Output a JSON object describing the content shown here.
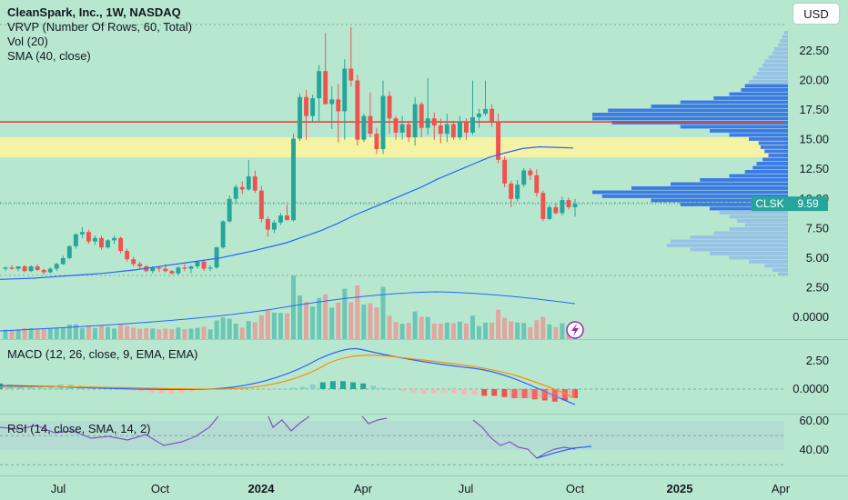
{
  "header": {
    "title": "CleanSpark, Inc., 1W, NASDAQ",
    "indicators": [
      "VRVP (Number Of Rows, 60, Total)",
      "Vol (20)",
      "SMA (40, close)"
    ],
    "currency_button": "USD"
  },
  "price_pane": {
    "ticks": [
      "22.50",
      "20.00",
      "17.50",
      "15.00",
      "12.50",
      "10.00",
      "7.50",
      "5.00",
      "2.50",
      "0.0000"
    ],
    "symbol": "CLSK",
    "last_price": "9.59"
  },
  "macd_pane": {
    "title": "MACD (12, 26, close, 9, EMA, EMA)",
    "ticks": [
      "2.50",
      "0.0000"
    ]
  },
  "rsi_pane": {
    "title": "RSI (14, close, SMA, 14, 2)",
    "ticks": [
      "60.00",
      "40.00"
    ]
  },
  "time_axis": {
    "labels": [
      {
        "text": "Jul",
        "bold": false
      },
      {
        "text": "Oct",
        "bold": false
      },
      {
        "text": "2024",
        "bold": true
      },
      {
        "text": "Apr",
        "bold": false
      },
      {
        "text": "Jul",
        "bold": false
      },
      {
        "text": "Oct",
        "bold": false
      },
      {
        "text": "2025",
        "bold": true
      },
      {
        "text": "Apr",
        "bold": false
      }
    ]
  },
  "colors": {
    "up": "#26a69a",
    "down": "#ef5350",
    "sma": "#2962ff",
    "resistance": "#e03a3a",
    "zone": "#fff59d"
  },
  "chart_data": {
    "type": "candlestick",
    "symbol": "CLSK",
    "interval": "1W",
    "price_range": [
      0,
      25
    ],
    "resistance_line": 16.5,
    "zone": [
      13.5,
      15.2
    ],
    "last_price": 9.59,
    "candles_ohlc": [
      [
        4.1,
        4.3,
        3.9,
        4.2
      ],
      [
        4.2,
        4.4,
        4.0,
        4.1
      ],
      [
        4.1,
        4.3,
        3.9,
        4.3
      ],
      [
        4.3,
        4.4,
        3.8,
        3.9
      ],
      [
        3.9,
        4.4,
        3.8,
        4.3
      ],
      [
        4.3,
        4.5,
        3.9,
        4.0
      ],
      [
        4.0,
        4.1,
        3.6,
        3.8
      ],
      [
        3.8,
        4.2,
        3.7,
        4.1
      ],
      [
        4.1,
        4.6,
        3.9,
        4.5
      ],
      [
        4.5,
        5.2,
        4.4,
        5.0
      ],
      [
        5.0,
        6.1,
        4.9,
        6.0
      ],
      [
        6.0,
        7.1,
        5.8,
        7.0
      ],
      [
        7.0,
        7.6,
        6.7,
        7.2
      ],
      [
        7.2,
        7.4,
        6.2,
        6.4
      ],
      [
        6.4,
        6.9,
        6.1,
        6.7
      ],
      [
        6.7,
        6.9,
        5.7,
        5.9
      ],
      [
        5.9,
        6.6,
        5.8,
        6.5
      ],
      [
        6.5,
        6.9,
        6.2,
        6.7
      ],
      [
        6.7,
        6.8,
        5.4,
        5.6
      ],
      [
        5.6,
        5.8,
        4.7,
        4.9
      ],
      [
        4.9,
        5.1,
        4.3,
        4.5
      ],
      [
        4.5,
        4.7,
        4.1,
        4.3
      ],
      [
        4.3,
        4.4,
        3.8,
        3.9
      ],
      [
        3.9,
        4.3,
        3.7,
        4.2
      ],
      [
        4.2,
        4.3,
        3.8,
        4.1
      ],
      [
        4.1,
        4.5,
        3.8,
        3.9
      ],
      [
        3.9,
        4.0,
        3.6,
        3.7
      ],
      [
        3.7,
        4.3,
        3.6,
        4.2
      ],
      [
        4.2,
        4.5,
        3.9,
        4.1
      ],
      [
        4.1,
        4.4,
        3.7,
        4.3
      ],
      [
        4.3,
        4.8,
        4.1,
        4.7
      ],
      [
        4.7,
        4.8,
        3.9,
        4.1
      ],
      [
        4.1,
        4.4,
        3.9,
        4.2
      ],
      [
        4.2,
        6.0,
        4.1,
        5.9
      ],
      [
        5.9,
        8.2,
        5.8,
        8.1
      ],
      [
        8.1,
        10.3,
        8.0,
        10.0
      ],
      [
        10.0,
        11.2,
        9.6,
        11.0
      ],
      [
        11.0,
        11.5,
        10.4,
        10.8
      ],
      [
        10.8,
        13.3,
        10.7,
        11.9
      ],
      [
        11.9,
        12.4,
        10.5,
        10.7
      ],
      [
        10.7,
        11.1,
        8.0,
        8.3
      ],
      [
        8.3,
        8.5,
        6.8,
        7.4
      ],
      [
        7.4,
        8.2,
        7.1,
        8.0
      ],
      [
        8.0,
        8.8,
        7.8,
        8.6
      ],
      [
        8.6,
        9.5,
        8.4,
        8.2
      ],
      [
        8.2,
        15.5,
        8.1,
        15.1
      ],
      [
        15.1,
        18.9,
        14.9,
        18.6
      ],
      [
        18.6,
        19.2,
        15.0,
        17.0
      ],
      [
        17.0,
        18.8,
        16.5,
        18.5
      ],
      [
        18.5,
        21.3,
        16.5,
        20.8
      ],
      [
        20.8,
        24.0,
        18.4,
        18.0
      ],
      [
        18.0,
        19.5,
        15.9,
        18.4
      ],
      [
        18.4,
        19.7,
        14.8,
        17.4
      ],
      [
        17.4,
        21.8,
        15.0,
        21.0
      ],
      [
        21.0,
        24.5,
        19.5,
        20.0
      ],
      [
        20.0,
        20.5,
        14.5,
        15.0
      ],
      [
        15.0,
        17.2,
        14.8,
        17.0
      ],
      [
        17.0,
        19.0,
        15.2,
        15.5
      ],
      [
        15.5,
        16.0,
        13.8,
        14.2
      ],
      [
        14.2,
        20.0,
        13.8,
        18.7
      ],
      [
        18.7,
        19.1,
        15.5,
        16.8
      ],
      [
        16.8,
        17.0,
        15.0,
        15.6
      ],
      [
        15.6,
        17.0,
        15.0,
        16.3
      ],
      [
        16.3,
        16.6,
        14.8,
        15.2
      ],
      [
        15.2,
        18.6,
        14.5,
        18.0
      ],
      [
        18.0,
        18.2,
        15.2,
        16.0
      ],
      [
        16.0,
        20.2,
        15.4,
        16.8
      ],
      [
        16.8,
        17.3,
        15.0,
        16.2
      ],
      [
        16.2,
        16.8,
        14.7,
        15.5
      ],
      [
        15.5,
        17.2,
        14.8,
        16.3
      ],
      [
        16.3,
        16.6,
        15.0,
        15.2
      ],
      [
        15.2,
        17.0,
        15.0,
        16.5
      ],
      [
        16.5,
        16.8,
        15.0,
        15.6
      ],
      [
        15.6,
        20.0,
        15.4,
        16.9
      ],
      [
        16.9,
        17.6,
        16.0,
        17.2
      ],
      [
        17.2,
        20.0,
        17.0,
        17.6
      ],
      [
        17.6,
        18.0,
        16.1,
        16.5
      ],
      [
        16.5,
        17.2,
        13.0,
        13.3
      ],
      [
        13.3,
        13.6,
        11.0,
        11.3
      ],
      [
        11.3,
        11.5,
        9.3,
        10.0
      ],
      [
        10.0,
        11.6,
        9.8,
        11.2
      ],
      [
        11.2,
        12.6,
        11.0,
        12.4
      ],
      [
        12.4,
        12.6,
        11.6,
        12.0
      ],
      [
        12.0,
        12.5,
        10.2,
        10.5
      ],
      [
        10.5,
        10.7,
        8.1,
        8.3
      ],
      [
        8.3,
        9.5,
        8.2,
        9.3
      ],
      [
        9.3,
        9.6,
        8.7,
        8.8
      ],
      [
        8.8,
        10.2,
        8.6,
        9.9
      ],
      [
        9.9,
        10.1,
        9.1,
        9.3
      ],
      [
        9.3,
        10.0,
        8.5,
        9.59
      ]
    ],
    "sma_40": [
      3.2,
      3.25,
      3.3,
      3.4,
      3.5,
      3.6,
      3.7,
      3.85,
      4.0,
      4.2,
      4.4,
      4.6,
      4.8,
      5.0,
      5.3,
      5.6,
      5.95,
      6.3,
      6.8,
      7.3,
      7.9,
      8.6,
      9.2,
      9.8,
      10.4,
      11.0,
      11.7,
      12.3,
      12.9,
      13.5,
      13.9,
      14.25,
      14.4,
      14.35,
      14.3
    ],
    "volume_up_flags": "mixed",
    "macd": {
      "range": [
        -1.5,
        4.0
      ]
    },
    "rsi": {
      "range": [
        28,
        62
      ],
      "levels": [
        50
      ],
      "visible_ticks": [
        60,
        40
      ]
    }
  }
}
